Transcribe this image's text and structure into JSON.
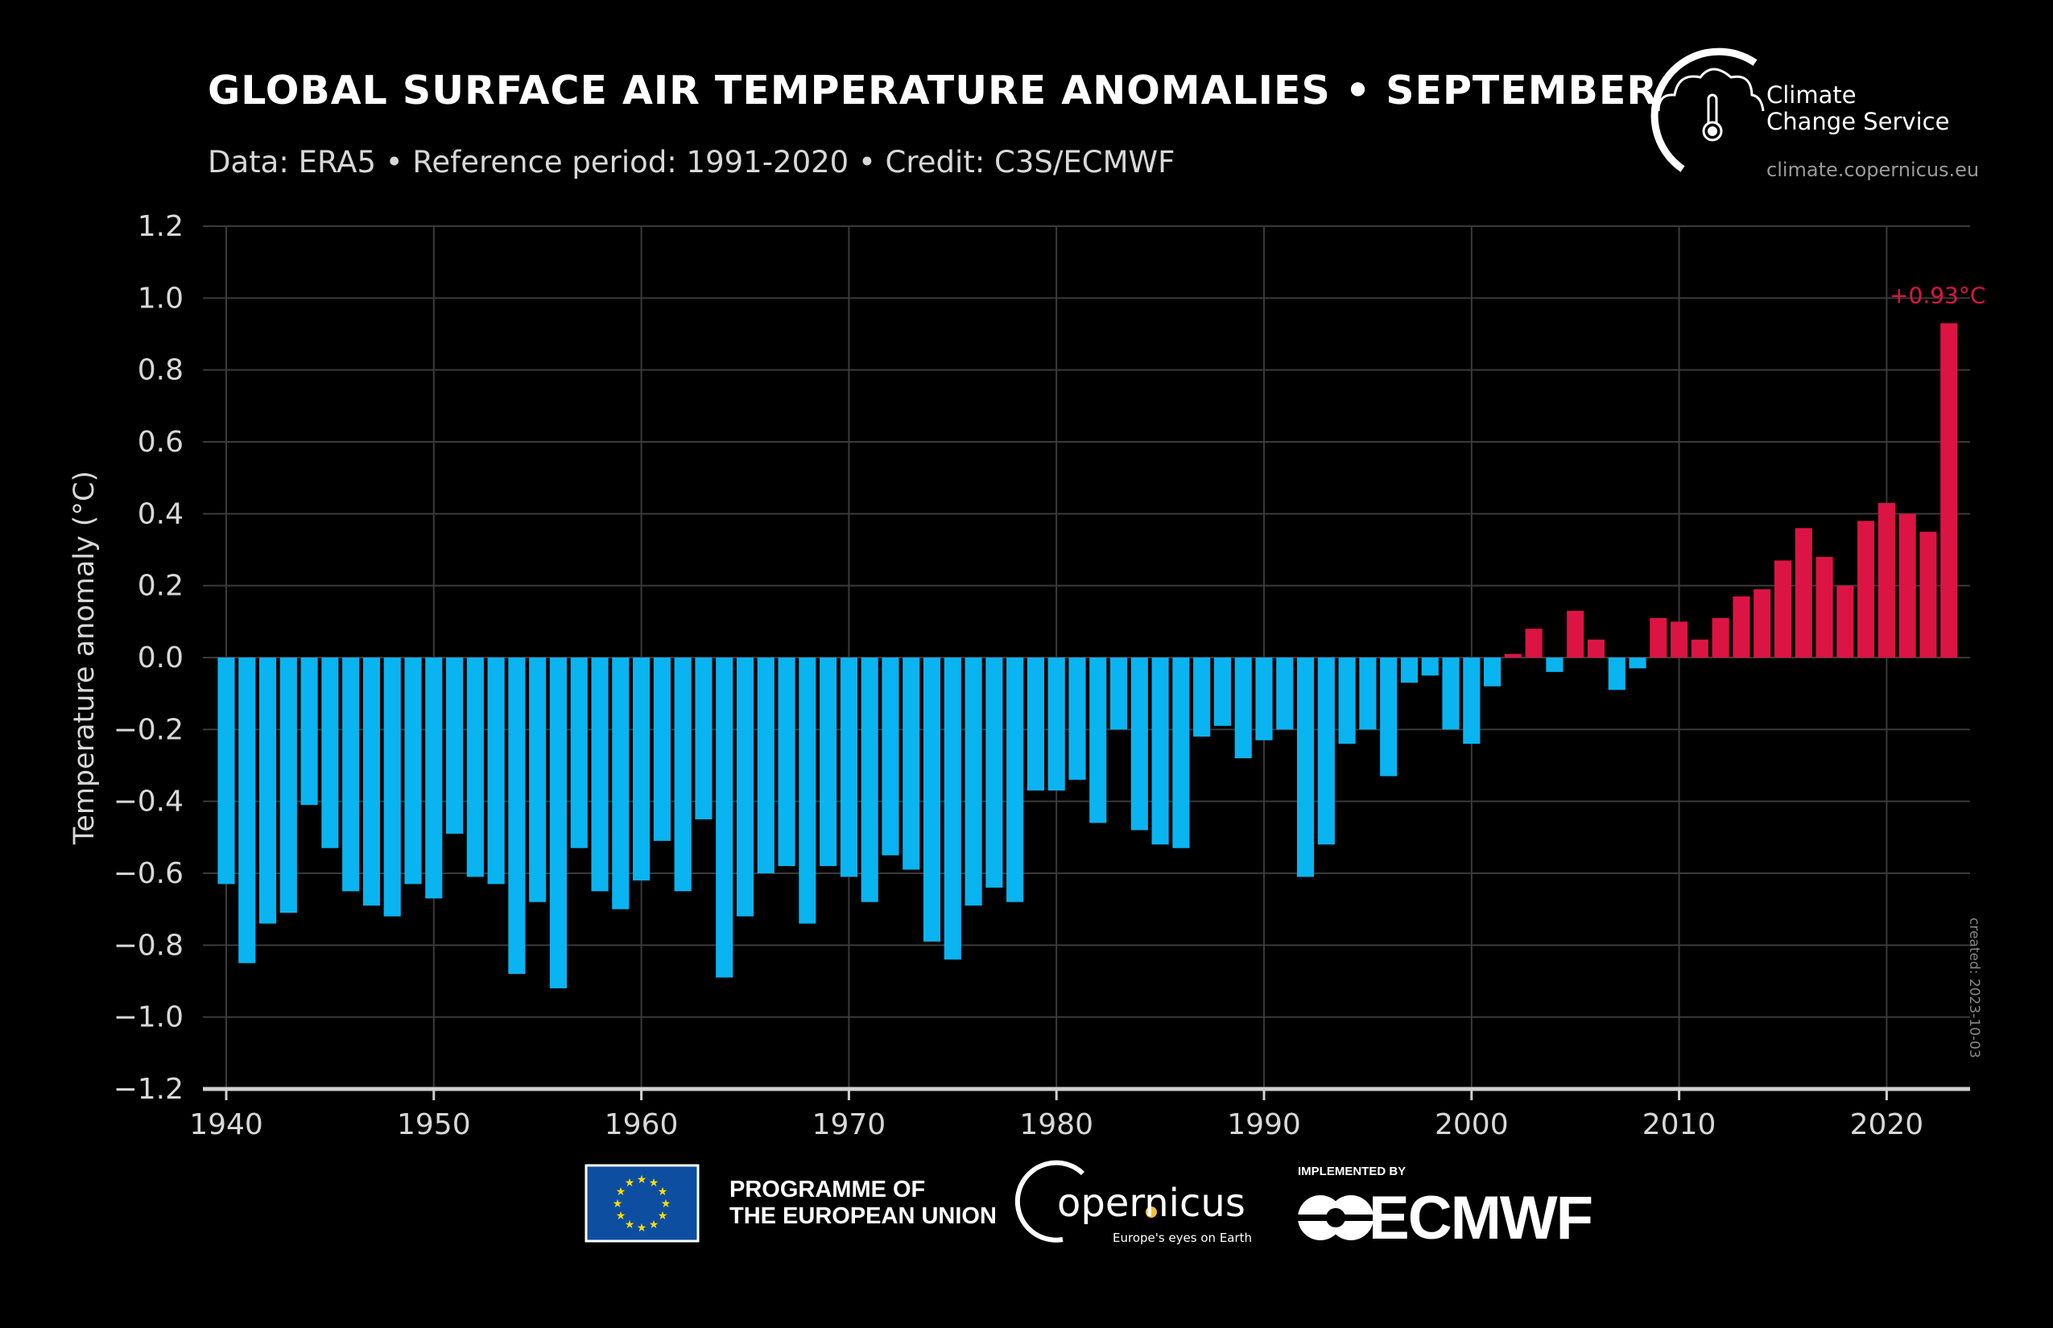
{
  "header": {
    "title": "GLOBAL SURFACE AIR TEMPERATURE ANOMALIES • SEPTEMBER",
    "subtitle": "Data: ERA5 • Reference period: 1991-2020 • Credit: C3S/ECMWF"
  },
  "logo": {
    "line1": "Climate",
    "line2": "Change Service",
    "url": "climate.copernicus.eu"
  },
  "footer": {
    "eu_line1": "PROGRAMME OF",
    "eu_line2": "THE EUROPEAN UNION",
    "copernicus": "opernicus",
    "copernicus_tagline": "Europe's eyes on Earth",
    "implemented_by": "IMPLEMENTED BY",
    "ecmwf": "ECMWF"
  },
  "created": "created: 2023-10-03",
  "colors": {
    "negative": "#0ab4f0",
    "positive": "#dc1443",
    "background": "#000000",
    "grid": "#3a3a3a"
  },
  "chart_data": {
    "type": "bar",
    "title": "GLOBAL SURFACE AIR TEMPERATURE ANOMALIES • SEPTEMBER",
    "xlabel": "",
    "ylabel": "Temperature anomaly (°C)",
    "ylim": [
      -1.2,
      1.2
    ],
    "xlim": [
      1940,
      2023
    ],
    "yticks": [
      "1.2",
      "1.0",
      "0.8",
      "0.6",
      "0.4",
      "0.2",
      "0.0",
      "-0.2",
      "-0.4",
      "-0.6",
      "-0.8",
      "-1.0",
      "-1.2"
    ],
    "xticks": [
      "1940",
      "1950",
      "1960",
      "1970",
      "1980",
      "1990",
      "2000",
      "2010",
      "2020"
    ],
    "grid": true,
    "annotation": {
      "year": 2023,
      "text": "+0.93°C"
    },
    "x": [
      1940,
      1941,
      1942,
      1943,
      1944,
      1945,
      1946,
      1947,
      1948,
      1949,
      1950,
      1951,
      1952,
      1953,
      1954,
      1955,
      1956,
      1957,
      1958,
      1959,
      1960,
      1961,
      1962,
      1963,
      1964,
      1965,
      1966,
      1967,
      1968,
      1969,
      1970,
      1971,
      1972,
      1973,
      1974,
      1975,
      1976,
      1977,
      1978,
      1979,
      1980,
      1981,
      1982,
      1983,
      1984,
      1985,
      1986,
      1987,
      1988,
      1989,
      1990,
      1991,
      1992,
      1993,
      1994,
      1995,
      1996,
      1997,
      1998,
      1999,
      2000,
      2001,
      2002,
      2003,
      2004,
      2005,
      2006,
      2007,
      2008,
      2009,
      2010,
      2011,
      2012,
      2013,
      2014,
      2015,
      2016,
      2017,
      2018,
      2019,
      2020,
      2021,
      2022,
      2023
    ],
    "values": [
      -0.63,
      -0.85,
      -0.74,
      -0.71,
      -0.41,
      -0.53,
      -0.65,
      -0.69,
      -0.72,
      -0.63,
      -0.67,
      -0.49,
      -0.61,
      -0.63,
      -0.88,
      -0.68,
      -0.92,
      -0.53,
      -0.65,
      -0.7,
      -0.62,
      -0.51,
      -0.65,
      -0.45,
      -0.89,
      -0.72,
      -0.6,
      -0.58,
      -0.74,
      -0.58,
      -0.61,
      -0.68,
      -0.55,
      -0.59,
      -0.79,
      -0.84,
      -0.69,
      -0.64,
      -0.68,
      -0.37,
      -0.37,
      -0.34,
      -0.46,
      -0.2,
      -0.48,
      -0.52,
      -0.53,
      -0.22,
      -0.19,
      -0.28,
      -0.23,
      -0.2,
      -0.61,
      -0.52,
      -0.24,
      -0.2,
      -0.33,
      -0.07,
      -0.05,
      -0.2,
      -0.24,
      -0.08,
      0.01,
      0.08,
      -0.04,
      0.13,
      0.05,
      -0.09,
      -0.03,
      0.11,
      0.1,
      0.05,
      0.11,
      0.17,
      0.19,
      0.27,
      0.36,
      0.28,
      0.2,
      0.38,
      0.43,
      0.4,
      0.35,
      0.93
    ]
  }
}
